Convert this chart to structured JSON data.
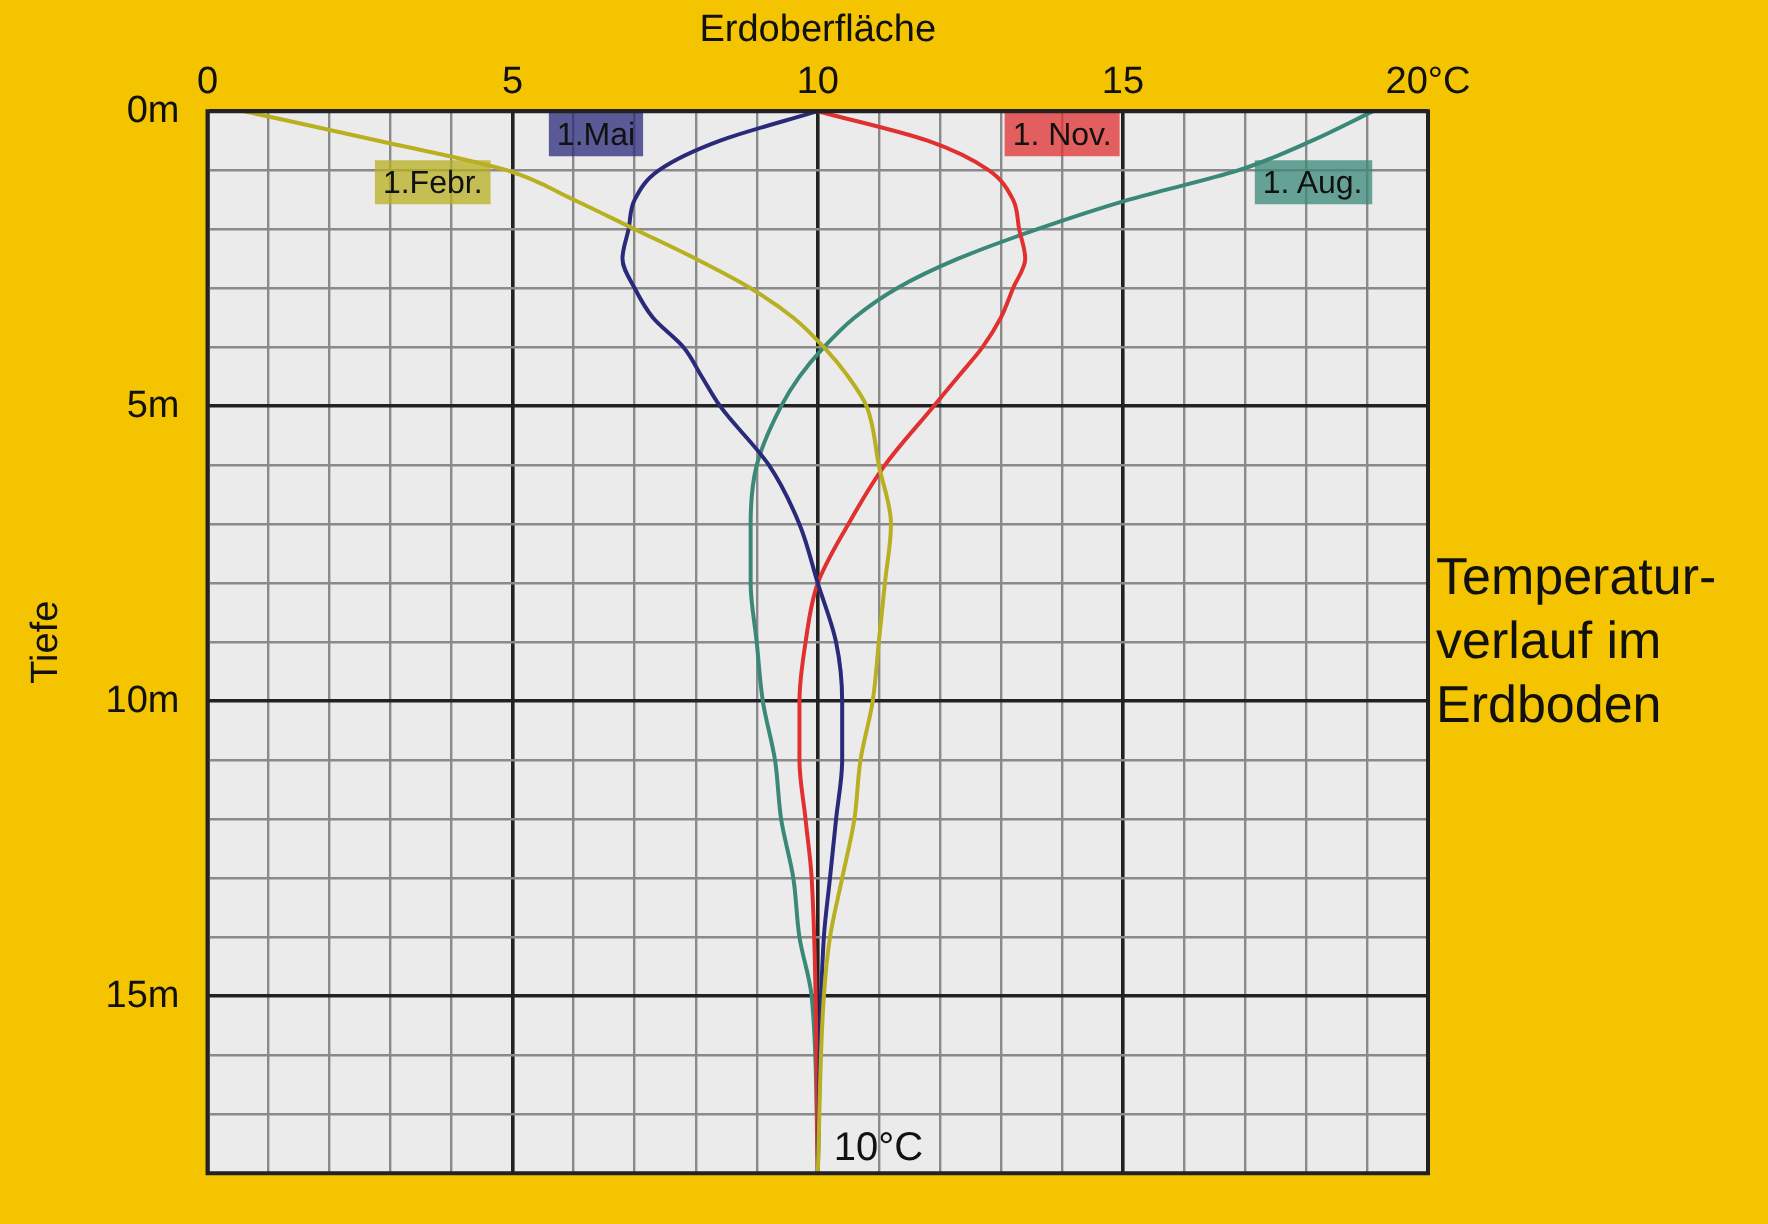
{
  "chart_data": {
    "type": "line",
    "title": "Temperatur-verlauf im Erdboden",
    "xlabel": "Erdoberfläche",
    "ylabel": "Tiefe",
    "xlim": [
      0,
      20
    ],
    "xticks": [
      0,
      {
        "value": 1,
        "label": null
      },
      {
        "value": 2,
        "label": null
      },
      {
        "value": 3,
        "label": null
      },
      {
        "value": 4,
        "label": null
      },
      5,
      {
        "value": 6,
        "label": null
      },
      {
        "value": 7,
        "label": null
      },
      {
        "value": 8,
        "label": null
      },
      {
        "value": 9,
        "label": null
      },
      10,
      {
        "value": 11,
        "label": null
      },
      {
        "value": 12,
        "label": null
      },
      {
        "value": 13,
        "label": null
      },
      {
        "value": 14,
        "label": null
      },
      15,
      {
        "value": 16,
        "label": null
      },
      {
        "value": 17,
        "label": null
      },
      {
        "value": 18,
        "label": null
      },
      {
        "value": 19,
        "label": null
      },
      {
        "value": 20,
        "label": "20°C"
      }
    ],
    "ylim": [
      18,
      0
    ],
    "yticks": [
      {
        "value": 0,
        "label": "0m"
      },
      {
        "value": 1,
        "label": null
      },
      {
        "value": 2,
        "label": null
      },
      {
        "value": 3,
        "label": null
      },
      {
        "value": 4,
        "label": null
      },
      {
        "value": 5,
        "label": "5m"
      },
      {
        "value": 6,
        "label": null
      },
      {
        "value": 7,
        "label": null
      },
      {
        "value": 8,
        "label": null
      },
      {
        "value": 9,
        "label": null
      },
      {
        "value": 10,
        "label": "10m"
      },
      {
        "value": 11,
        "label": null
      },
      {
        "value": 12,
        "label": null
      },
      {
        "value": 13,
        "label": null
      },
      {
        "value": 14,
        "label": null
      },
      {
        "value": 15,
        "label": "15m"
      },
      {
        "value": 16,
        "label": null
      },
      {
        "value": 17,
        "label": null
      },
      {
        "value": 18,
        "label": null
      }
    ],
    "grid": true,
    "legend": false,
    "marker": "none",
    "line_style": "solid",
    "annotations": [
      {
        "text": "10°C",
        "x": 10,
        "y": 18
      }
    ],
    "series": [
      {
        "name": "1.Febr.",
        "color": "#b8b020",
        "x": [
          0.6,
          2.8,
          4.9,
          6.0,
          7.0,
          8.0,
          8.9,
          9.6,
          10.1,
          10.5,
          10.8,
          11.0,
          11.2,
          11.1,
          11.0,
          10.9,
          10.7,
          10.6,
          10.4,
          10.2,
          10.1,
          10.0
        ],
        "values": [
          0,
          0.5,
          1,
          1.5,
          2,
          2.5,
          3,
          3.5,
          4,
          4.5,
          5,
          6,
          7,
          8,
          9,
          10,
          11,
          12,
          13,
          14,
          15,
          18
        ]
      },
      {
        "name": "1.Mai",
        "color": "#2a2a7a",
        "x": [
          10.0,
          8.4,
          7.4,
          7.0,
          6.9,
          6.8,
          7.0,
          7.3,
          7.8,
          8.1,
          8.4,
          9.2,
          9.7,
          10.0,
          10.3,
          10.4,
          10.4,
          10.3,
          10.2,
          10.1,
          10.0
        ],
        "values": [
          0,
          0.5,
          1,
          1.5,
          2,
          2.5,
          3,
          3.5,
          4,
          4.5,
          5,
          6,
          7,
          8,
          9,
          10,
          11,
          12,
          13,
          14,
          18
        ]
      },
      {
        "name": "1. Nov.",
        "color": "#e03030",
        "x": [
          10.0,
          11.8,
          12.8,
          13.2,
          13.3,
          13.4,
          13.2,
          13.0,
          12.7,
          12.3,
          11.9,
          11.1,
          10.5,
          10.0,
          9.8,
          9.7,
          9.7,
          9.8,
          9.9,
          10.0
        ],
        "values": [
          0,
          0.5,
          1,
          1.5,
          2,
          2.5,
          3,
          3.5,
          4,
          4.5,
          5,
          6,
          7,
          8,
          9,
          10,
          11,
          12,
          13,
          18
        ]
      },
      {
        "name": "1. Aug.",
        "color": "#3a8878",
        "x": [
          19.1,
          18.1,
          16.9,
          15.1,
          13.6,
          12.3,
          11.3,
          10.6,
          10.1,
          9.7,
          9.4,
          9.0,
          8.9,
          8.9,
          9.0,
          9.1,
          9.3,
          9.4,
          9.6,
          9.7,
          9.9,
          10.0
        ],
        "values": [
          0,
          0.5,
          1,
          1.5,
          2,
          2.5,
          3,
          3.5,
          4,
          4.5,
          5,
          6,
          7,
          8,
          9,
          10,
          11,
          12,
          13,
          14,
          15,
          18
        ]
      }
    ]
  }
}
